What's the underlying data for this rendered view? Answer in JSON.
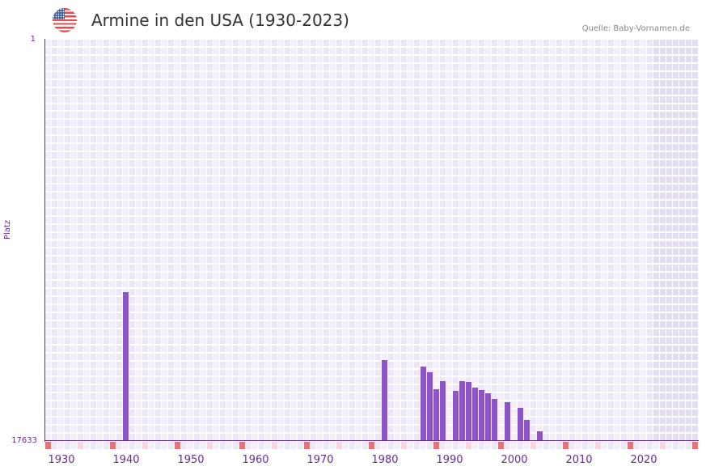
{
  "header": {
    "flag_icon": "us-flag-icon",
    "title": "Armine in den USA (1930-2023)",
    "source": "Quelle: Baby-Vornamen.de"
  },
  "colors": {
    "bar": "#8e55c8",
    "axis": "#6a2c9a",
    "grid_light": "#f3f0fb",
    "grid_alt": "#ece7f7",
    "shaded": "#e3dff0",
    "marker_strong": "#e57373",
    "marker_light": "#f6d6df"
  },
  "chart_data": {
    "type": "bar",
    "title": "Armine in den USA (1930-2023)",
    "xlabel": "",
    "ylabel": "Platz",
    "ylim": [
      17633,
      1
    ],
    "y_inverted": true,
    "y_ticks": [
      "1",
      "17633"
    ],
    "x_range": [
      1928,
      2028
    ],
    "x_ticks": [
      "1930",
      "1940",
      "1950",
      "1960",
      "1970",
      "1980",
      "1990",
      "2000",
      "2010",
      "2020"
    ],
    "grid": true,
    "shaded_from_year": 2022,
    "years": [
      1940,
      1980,
      1986,
      1987,
      1988,
      1989,
      1991,
      1992,
      1993,
      1994,
      1995,
      1996,
      1997,
      1999,
      2001,
      2002,
      2004
    ],
    "values": [
      11105,
      14085,
      14369,
      14617,
      15362,
      15008,
      15433,
      15008,
      15043,
      15291,
      15398,
      15540,
      15788,
      15930,
      16178,
      16710,
      17207
    ],
    "source": "Quelle: Baby-Vornamen.de"
  }
}
